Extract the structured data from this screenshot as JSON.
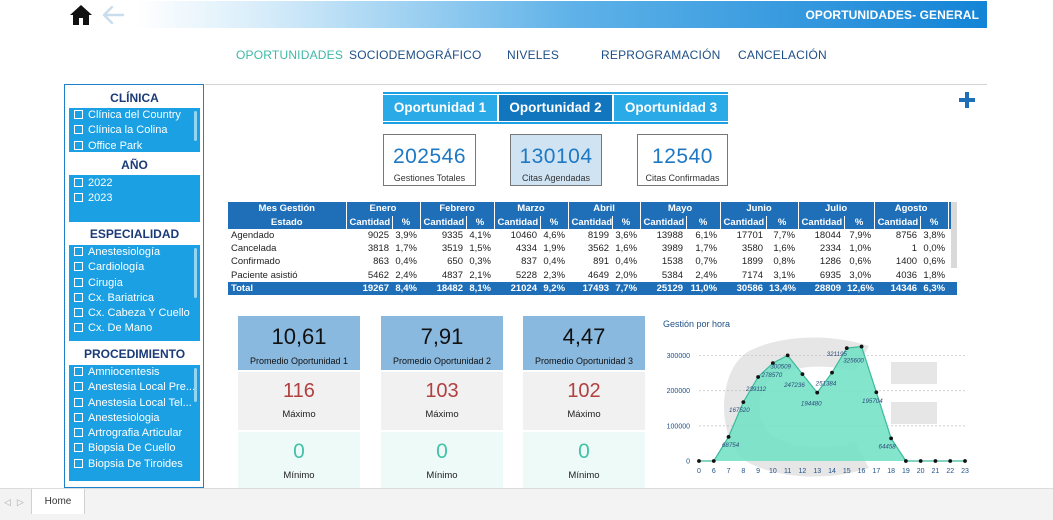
{
  "header": {
    "title": "OPORTUNIDADES- GENERAL",
    "home_icon": "home-icon",
    "back_icon": "arrow-left-icon"
  },
  "nav": [
    {
      "label": "OPORTUNIDADES",
      "active": true
    },
    {
      "label": "SOCIODEMOGRÁFICO",
      "active": false
    },
    {
      "label": "NIVELES",
      "active": false
    },
    {
      "label": "REPROGRAMACIÓN",
      "active": false
    },
    {
      "label": "CANCELACIÓN",
      "active": false
    }
  ],
  "sidebar": {
    "clinica": {
      "title": "CLÍNICA",
      "items": [
        "Clínica del Country",
        "Clínica la Colina",
        "Office Park"
      ]
    },
    "anio": {
      "title": "AÑO",
      "items": [
        "2022",
        "2023"
      ]
    },
    "especialidad": {
      "title": "ESPECIALIDAD",
      "items": [
        "Anestesiología",
        "Cardiología",
        "Cirugia",
        "Cx. Bariatrica",
        "Cx. Cabeza Y Cuello",
        "Cx. De Mano"
      ]
    },
    "procedimiento": {
      "title": "PROCEDIMIENTO",
      "items": [
        "Amniocentesis",
        "Anestesia Local Pre...",
        "Anestesia Local Tel...",
        "Anestesiologia",
        "Artrografia Articular",
        "Biopsia De Cuello",
        "Biopsia De Tiroides"
      ]
    }
  },
  "op_tabs": [
    {
      "label": "Oportunidad 1",
      "selected": false
    },
    {
      "label": "Oportunidad 2",
      "selected": true
    },
    {
      "label": "Oportunidad 3",
      "selected": false
    }
  ],
  "kpis": {
    "gestiones": {
      "value": "202546",
      "label": "Gestiones Totales"
    },
    "agendadas": {
      "value": "130104",
      "label": "Citas Agendadas"
    },
    "confirmadas": {
      "value": "12540",
      "label": "Citas Confirmadas"
    }
  },
  "table": {
    "corner_top": "Mes Gestión",
    "corner_bottom": "Estado",
    "months": [
      "Enero",
      "Febrero",
      "Marzo",
      "Abril",
      "Mayo",
      "Junio",
      "Julio",
      "Agosto"
    ],
    "next_month_partial": "Ca",
    "sub_headers": [
      "Cantidad",
      "%"
    ],
    "rows": [
      {
        "estado": "Agendado",
        "cells": [
          "9025",
          "3,9%",
          "9335",
          "4,1%",
          "10460",
          "4,6%",
          "8199",
          "3,6%",
          "13988",
          "6,1%",
          "17701",
          "7,7%",
          "18044",
          "7,9%",
          "8756",
          "3,8%"
        ]
      },
      {
        "estado": "Cancelada",
        "cells": [
          "3818",
          "1,7%",
          "3519",
          "1,5%",
          "4334",
          "1,9%",
          "3562",
          "1,6%",
          "3989",
          "1,7%",
          "3580",
          "1,6%",
          "2334",
          "1,0%",
          "1",
          "0,0%"
        ]
      },
      {
        "estado": "Confirmado",
        "cells": [
          "863",
          "0,4%",
          "650",
          "0,3%",
          "837",
          "0,4%",
          "891",
          "0,4%",
          "1538",
          "0,7%",
          "1899",
          "0,8%",
          "1286",
          "0,6%",
          "1400",
          "0,6%"
        ]
      },
      {
        "estado": "Paciente asistió",
        "cells": [
          "5462",
          "2,4%",
          "4837",
          "2,1%",
          "5228",
          "2,3%",
          "4649",
          "2,0%",
          "5384",
          "2,4%",
          "7174",
          "3,1%",
          "6935",
          "3,0%",
          "4036",
          "1,8%"
        ]
      }
    ],
    "total": {
      "estado": "Total",
      "cells": [
        "19267",
        "8,4%",
        "18482",
        "8,1%",
        "21024",
        "9,2%",
        "17493",
        "7,7%",
        "25129",
        "11,0%",
        "30586",
        "13,4%",
        "28809",
        "12,6%",
        "14346",
        "6,3%"
      ]
    }
  },
  "promedios": [
    {
      "value": "10,61",
      "label": "Promedio Oportunidad 1",
      "max": "116",
      "max_label": "Máximo",
      "min": "0",
      "min_label": "Mínimo"
    },
    {
      "value": "7,91",
      "label": "Promedio Oportunidad 2",
      "max": "103",
      "max_label": "Máximo",
      "min": "0",
      "min_label": "Mínimo"
    },
    {
      "value": "4,47",
      "label": "Promedio Oportunidad 3",
      "max": "102",
      "max_label": "Máximo",
      "min": "0",
      "min_label": "Mínimo"
    }
  ],
  "chart_data": {
    "type": "area",
    "title": "Gestión por hora",
    "x": [
      "0",
      "6",
      "7",
      "8",
      "9",
      "10",
      "11",
      "12",
      "13",
      "14",
      "15",
      "16",
      "17",
      "18",
      "19",
      "20",
      "21",
      "22",
      "23"
    ],
    "values": [
      0,
      0,
      68754,
      167520,
      239112,
      278570,
      300509,
      247236,
      194480,
      251384,
      321195,
      325600,
      195704,
      64458,
      0,
      0,
      0,
      0,
      0
    ],
    "data_labels": {
      "2": "68754",
      "3": "167520",
      "4": "239112",
      "5": "278570",
      "6": "300509",
      "7": "247236",
      "8": "194480",
      "9": "251384",
      "10": "321195",
      "11": "325600",
      "12": "195704",
      "13": "64458"
    },
    "yticks": [
      "0",
      "100000",
      "200000",
      "300000"
    ],
    "ylim": [
      0,
      350000
    ],
    "colors": {
      "fill": "#6fe0c4",
      "line": "#3cb99c",
      "marker": "#111111"
    }
  },
  "footer": {
    "page_tab": "Home"
  }
}
